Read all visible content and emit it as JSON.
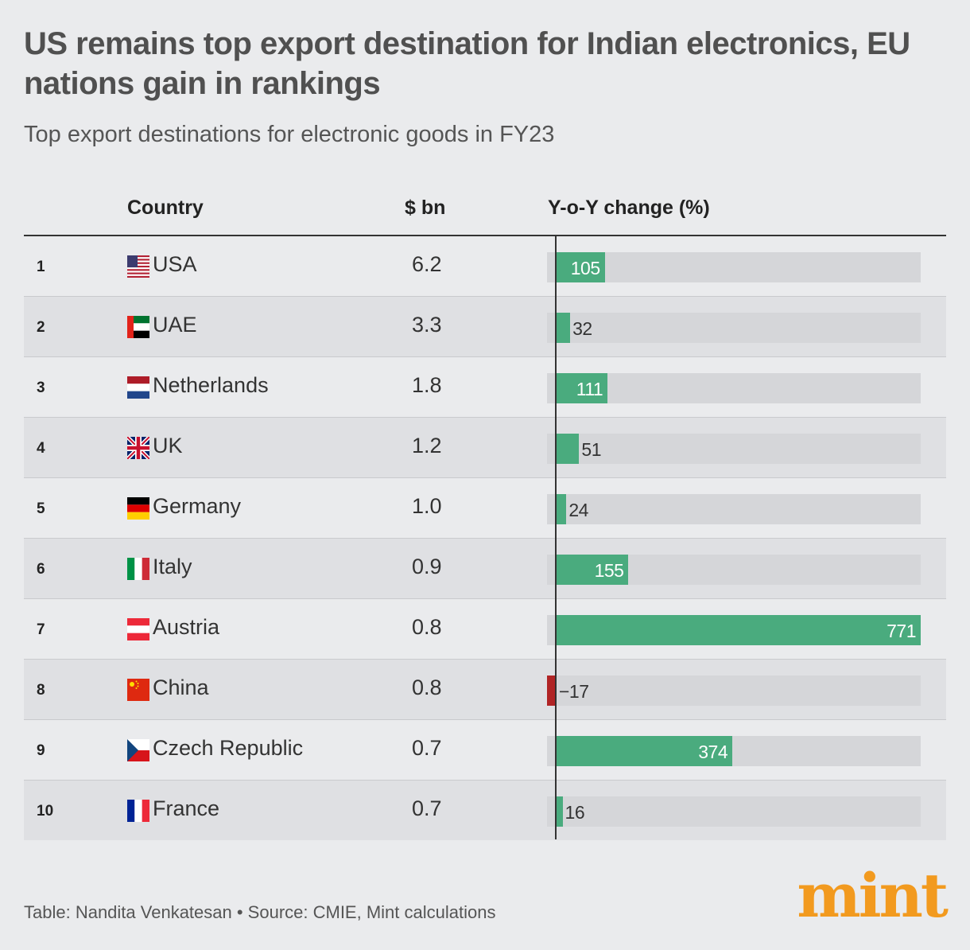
{
  "title": "US remains top export destination for Indian electronics, EU nations gain in rankings",
  "subtitle": "Top export destinations for electronic goods in FY23",
  "columns": {
    "country": "Country",
    "value": "$ bn",
    "change": "Y-o-Y change (%)"
  },
  "footer": "Table: Nandita Venkatesan • Source: CMIE, Mint calculations",
  "logo": "mint",
  "colors": {
    "positive": "#4aab7e",
    "negative": "#b02425",
    "track": "#d5d6d9",
    "logo": "#f29a1f"
  },
  "chart_data": {
    "type": "table",
    "change_scale_max": 771,
    "rows": [
      {
        "rank": "1",
        "country": "USA",
        "flag": "usa-flag-icon",
        "value": "6.2",
        "change": 105,
        "change_label": "105"
      },
      {
        "rank": "2",
        "country": "UAE",
        "flag": "uae-flag-icon",
        "value": "3.3",
        "change": 32,
        "change_label": "32"
      },
      {
        "rank": "3",
        "country": "Netherlands",
        "flag": "netherlands-flag-icon",
        "value": "1.8",
        "change": 111,
        "change_label": "111"
      },
      {
        "rank": "4",
        "country": "UK",
        "flag": "uk-flag-icon",
        "value": "1.2",
        "change": 51,
        "change_label": "51"
      },
      {
        "rank": "5",
        "country": "Germany",
        "flag": "germany-flag-icon",
        "value": "1.0",
        "change": 24,
        "change_label": "24"
      },
      {
        "rank": "6",
        "country": "Italy",
        "flag": "italy-flag-icon",
        "value": "0.9",
        "change": 155,
        "change_label": "155"
      },
      {
        "rank": "7",
        "country": "Austria",
        "flag": "austria-flag-icon",
        "value": "0.8",
        "change": 771,
        "change_label": "771"
      },
      {
        "rank": "8",
        "country": "China",
        "flag": "china-flag-icon",
        "value": "0.8",
        "change": -17,
        "change_label": "−17"
      },
      {
        "rank": "9",
        "country": "Czech Republic",
        "flag": "czech-flag-icon",
        "value": "0.7",
        "change": 374,
        "change_label": "374"
      },
      {
        "rank": "10",
        "country": "France",
        "flag": "france-flag-icon",
        "value": "0.7",
        "change": 16,
        "change_label": "16"
      }
    ]
  }
}
